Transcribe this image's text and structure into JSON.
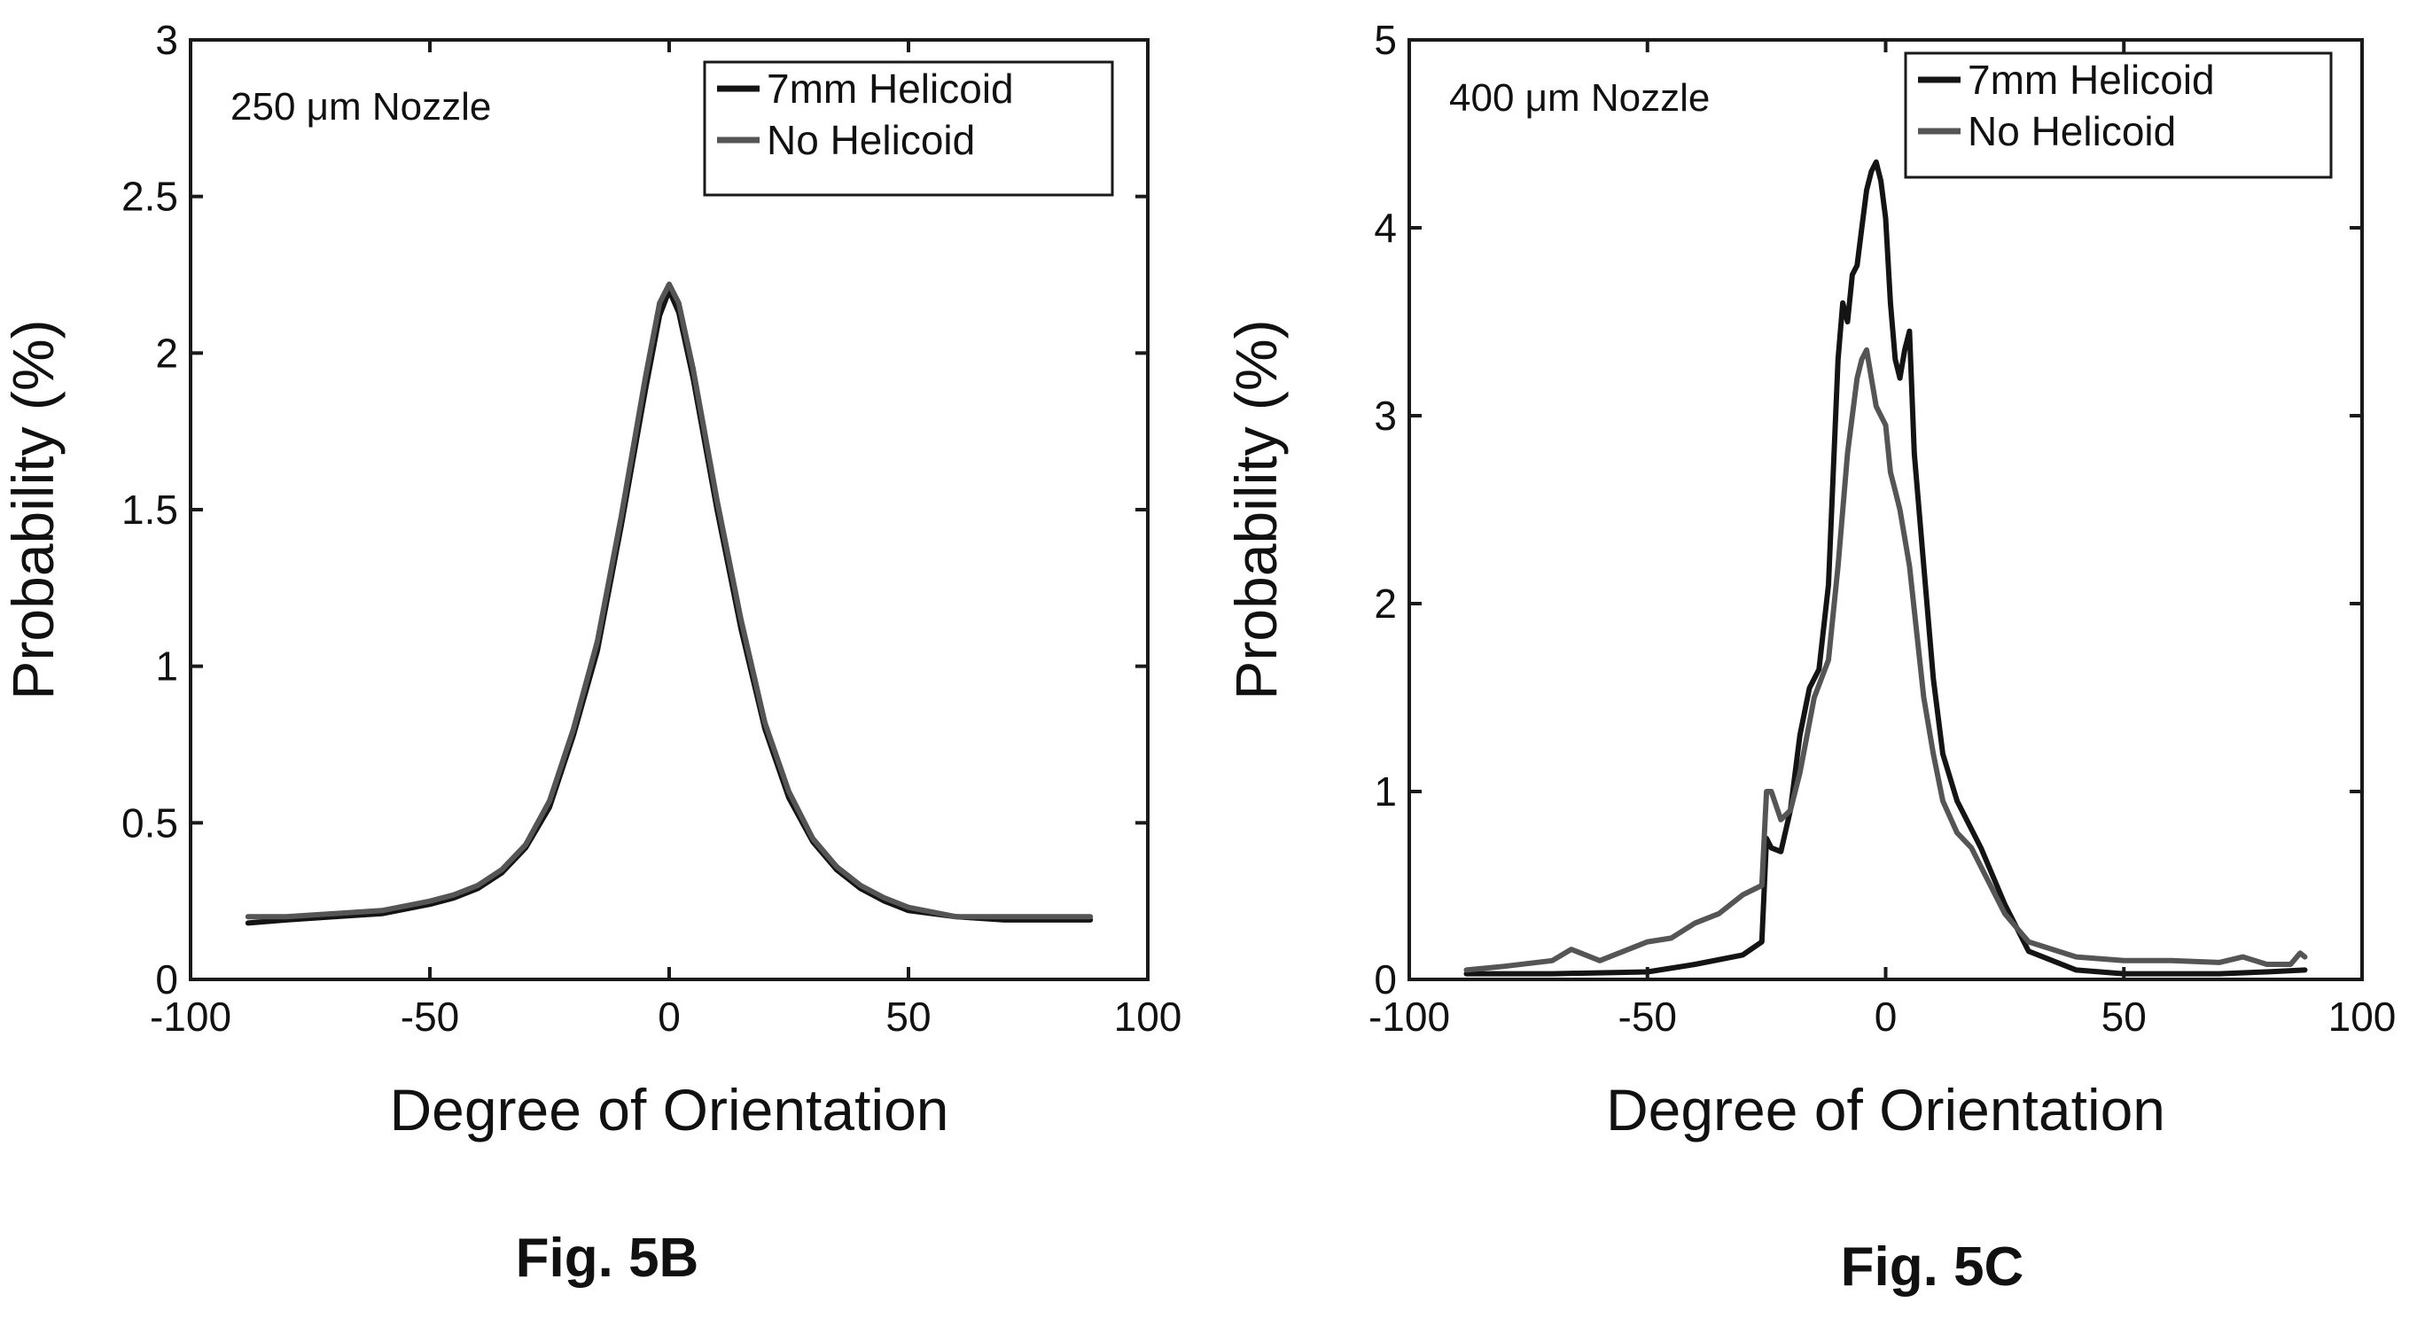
{
  "figures": [
    {
      "caption": "Fig. 5B"
    },
    {
      "caption": "Fig. 5C"
    }
  ],
  "colors": {
    "series_dark": "#141414",
    "series_gray": "#555555",
    "axes": "#1a1a1a",
    "background": "#ffffff"
  },
  "chart_data": [
    {
      "type": "line",
      "title": "",
      "annotation": "250 μm Nozzle",
      "xlabel": "Degree of Orientation",
      "ylabel": "Probability (%)",
      "xlim": [
        -100,
        100
      ],
      "ylim": [
        0,
        3
      ],
      "xticks": [
        "-100",
        "-50",
        "0",
        "50",
        "100"
      ],
      "yticks": [
        "0",
        "0.5",
        "1",
        "1.5",
        "2",
        "2.5",
        "3"
      ],
      "xtick_values": [
        -100,
        -50,
        0,
        50,
        100
      ],
      "ytick_values": [
        0,
        0.5,
        1,
        1.5,
        2,
        2.5,
        3
      ],
      "legend": "top-right",
      "grid": false,
      "series": [
        {
          "name": "7mm Helicoid",
          "color": "#141414",
          "x": [
            -88,
            -80,
            -70,
            -60,
            -50,
            -45,
            -40,
            -35,
            -30,
            -25,
            -20,
            -15,
            -10,
            -5,
            -2,
            0,
            2,
            5,
            10,
            15,
            20,
            25,
            30,
            35,
            40,
            45,
            50,
            60,
            70,
            80,
            88
          ],
          "y": [
            0.18,
            0.19,
            0.2,
            0.21,
            0.24,
            0.26,
            0.29,
            0.34,
            0.42,
            0.55,
            0.78,
            1.05,
            1.45,
            1.88,
            2.12,
            2.2,
            2.13,
            1.92,
            1.5,
            1.12,
            0.8,
            0.58,
            0.44,
            0.35,
            0.29,
            0.25,
            0.22,
            0.2,
            0.19,
            0.19,
            0.19
          ]
        },
        {
          "name": "No Helicoid",
          "color": "#555555",
          "x": [
            -88,
            -80,
            -70,
            -60,
            -50,
            -45,
            -40,
            -35,
            -30,
            -25,
            -20,
            -15,
            -10,
            -5,
            -2,
            0,
            2,
            5,
            10,
            15,
            20,
            25,
            30,
            35,
            40,
            45,
            50,
            60,
            70,
            80,
            88
          ],
          "y": [
            0.2,
            0.2,
            0.21,
            0.22,
            0.25,
            0.27,
            0.3,
            0.35,
            0.43,
            0.57,
            0.8,
            1.08,
            1.48,
            1.92,
            2.16,
            2.22,
            2.16,
            1.95,
            1.53,
            1.15,
            0.82,
            0.6,
            0.45,
            0.36,
            0.3,
            0.26,
            0.23,
            0.2,
            0.2,
            0.2,
            0.2
          ]
        }
      ]
    },
    {
      "type": "line",
      "title": "",
      "annotation": "400 μm Nozzle",
      "xlabel": "Degree of Orientation",
      "ylabel": "Probability (%)",
      "xlim": [
        -100,
        100
      ],
      "ylim": [
        0,
        5
      ],
      "xticks": [
        "-100",
        "-50",
        "0",
        "50",
        "100"
      ],
      "yticks": [
        "0",
        "1",
        "2",
        "3",
        "4",
        "5"
      ],
      "xtick_values": [
        -100,
        -50,
        0,
        50,
        100
      ],
      "ytick_values": [
        0,
        1,
        2,
        3,
        4,
        5
      ],
      "legend": "top-right",
      "grid": false,
      "series": [
        {
          "name": "7mm Helicoid",
          "color": "#141414",
          "x": [
            -88,
            -70,
            -50,
            -40,
            -30,
            -26,
            -25,
            -24,
            -22,
            -20,
            -18,
            -16,
            -14,
            -12,
            -10,
            -9,
            -8,
            -7,
            -6,
            -5,
            -4,
            -3,
            -2,
            -1,
            0,
            1,
            2,
            3,
            4,
            5,
            6,
            8,
            10,
            12,
            15,
            20,
            25,
            30,
            40,
            50,
            60,
            70,
            80,
            88
          ],
          "y": [
            0.03,
            0.03,
            0.04,
            0.08,
            0.13,
            0.2,
            0.75,
            0.7,
            0.68,
            0.9,
            1.3,
            1.55,
            1.65,
            2.1,
            3.3,
            3.6,
            3.5,
            3.75,
            3.8,
            4.0,
            4.2,
            4.3,
            4.35,
            4.25,
            4.05,
            3.6,
            3.3,
            3.2,
            3.35,
            3.45,
            2.8,
            2.2,
            1.6,
            1.2,
            0.95,
            0.7,
            0.4,
            0.15,
            0.05,
            0.03,
            0.03,
            0.03,
            0.04,
            0.05
          ]
        },
        {
          "name": "No Helicoid",
          "color": "#555555",
          "x": [
            -88,
            -80,
            -70,
            -66,
            -60,
            -55,
            -50,
            -45,
            -40,
            -35,
            -30,
            -26,
            -25,
            -24,
            -22,
            -20,
            -18,
            -15,
            -12,
            -10,
            -8,
            -6,
            -5,
            -4,
            -3,
            -2,
            -1,
            0,
            1,
            2,
            3,
            5,
            8,
            10,
            12,
            15,
            18,
            20,
            22,
            25,
            30,
            40,
            50,
            60,
            70,
            75,
            80,
            85,
            87,
            88
          ],
          "y": [
            0.05,
            0.07,
            0.1,
            0.16,
            0.1,
            0.15,
            0.2,
            0.22,
            0.3,
            0.35,
            0.45,
            0.5,
            1.0,
            1.0,
            0.85,
            0.9,
            1.1,
            1.5,
            1.7,
            2.2,
            2.8,
            3.2,
            3.3,
            3.35,
            3.2,
            3.05,
            3.0,
            2.95,
            2.7,
            2.6,
            2.5,
            2.2,
            1.5,
            1.2,
            0.95,
            0.78,
            0.7,
            0.6,
            0.5,
            0.35,
            0.2,
            0.12,
            0.1,
            0.1,
            0.09,
            0.12,
            0.08,
            0.08,
            0.14,
            0.12
          ]
        }
      ]
    }
  ]
}
